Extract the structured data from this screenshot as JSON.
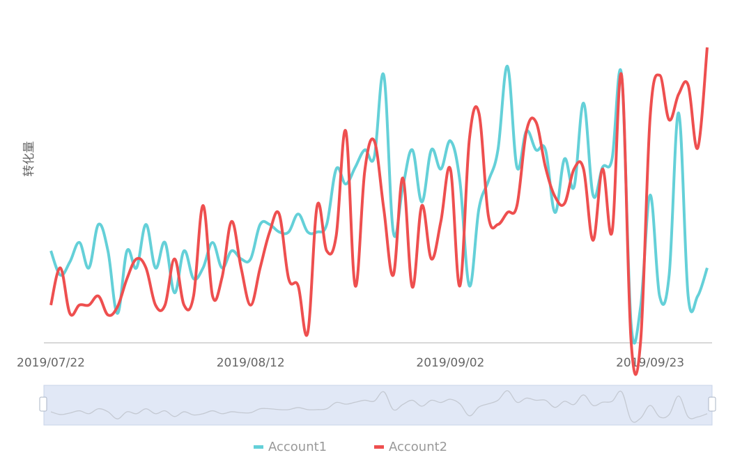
{
  "chart_data": {
    "type": "line",
    "y_label": "转化量",
    "categories": [
      "2019/07/22",
      null,
      null,
      null,
      null,
      null,
      null,
      null,
      null,
      null,
      null,
      null,
      null,
      null,
      null,
      null,
      null,
      null,
      null,
      null,
      null,
      "2019/08/12",
      null,
      null,
      null,
      null,
      null,
      null,
      null,
      null,
      null,
      null,
      null,
      null,
      null,
      null,
      null,
      null,
      null,
      null,
      null,
      null,
      "2019/09/02",
      null,
      null,
      null,
      null,
      null,
      null,
      null,
      null,
      null,
      null,
      null,
      null,
      null,
      null,
      null,
      null,
      null,
      null,
      null,
      null,
      "2019/09/23",
      null,
      null,
      null,
      null,
      null,
      null
    ],
    "series": [
      {
        "name": "Account1",
        "color": "#64d0d8",
        "values": [
          30.7,
          22.6,
          27,
          33.5,
          25,
          39.5,
          30.7,
          9.8,
          30.7,
          25,
          39.5,
          25,
          33.5,
          16.7,
          30.7,
          21.4,
          25,
          33.5,
          25,
          30.7,
          28,
          28,
          39.5,
          39.5,
          37,
          37,
          43,
          37,
          37,
          39.5,
          58,
          53,
          58.6,
          64.4,
          62,
          89.3,
          37,
          52,
          64.4,
          47,
          64.4,
          58,
          67.4,
          54,
          19,
          44.7,
          54,
          64.4,
          92.3,
          58.6,
          70.7,
          64.4,
          64.4,
          43.5,
          61.4,
          52,
          80,
          49.3,
          58.6,
          61.4,
          89.3,
          6.3,
          12,
          49.3,
          15.6,
          22.6,
          76.7,
          15.6,
          15.6,
          25
        ]
      },
      {
        "name": "Account2",
        "color": "#ee4f4f",
        "values": [
          12.6,
          25,
          9.8,
          12.6,
          12.6,
          15.6,
          9.3,
          12,
          21.4,
          28,
          25,
          12.6,
          12.6,
          28,
          12.6,
          15.6,
          45.8,
          15.6,
          21.9,
          40.5,
          25,
          12.6,
          25,
          37,
          43,
          21.4,
          19,
          3.3,
          45.8,
          30.7,
          35.8,
          70.7,
          19,
          57.4,
          67.4,
          44.7,
          22.6,
          55,
          18.6,
          45.8,
          28,
          40.5,
          58,
          19,
          68,
          76.7,
          42.3,
          39.5,
          43.5,
          45.8,
          70.7,
          73.7,
          58.6,
          48.8,
          46.5,
          58,
          58,
          34.2,
          58,
          37,
          89.3,
          0.5,
          0.5,
          75.3,
          89.3,
          74.4,
          83,
          86,
          65,
          98.6
        ]
      }
    ],
    "ylim": [
      0,
      100
    ],
    "smooth": true,
    "grid": false
  }
}
